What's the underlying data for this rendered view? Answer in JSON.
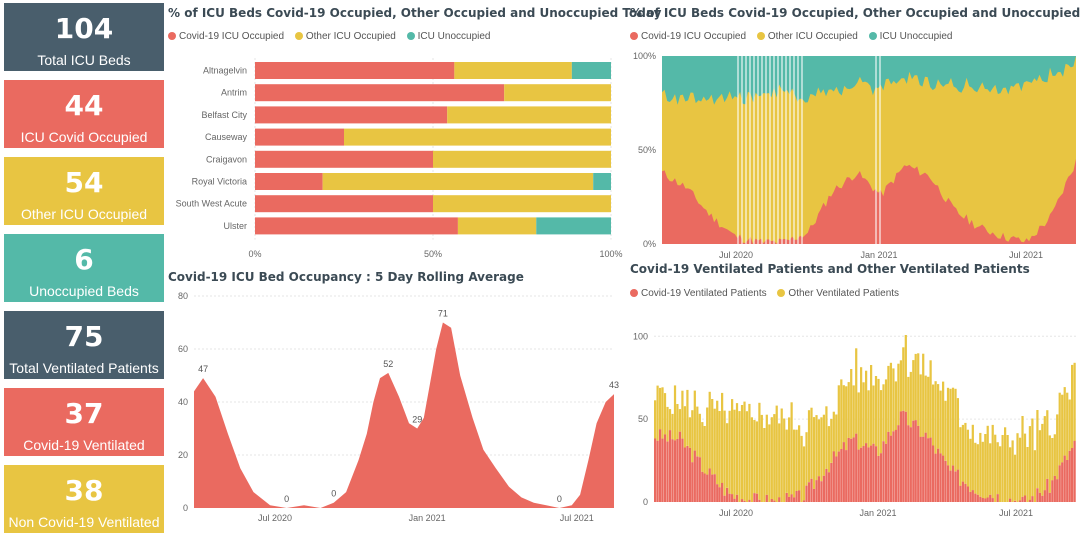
{
  "colors": {
    "covid": "#ea6a60",
    "other": "#e8c542",
    "unocc": "#54b9a8",
    "dark": "#495e6c"
  },
  "cards": [
    {
      "value": "104",
      "label": "Total ICU Beds",
      "color": "#495e6c"
    },
    {
      "value": "44",
      "label": "ICU Covid Occupied",
      "color": "#ea6a60"
    },
    {
      "value": "54",
      "label": "Other ICU Occupied",
      "color": "#e8c542"
    },
    {
      "value": "6",
      "label": "Unoccupied Beds",
      "color": "#54b9a8"
    },
    {
      "value": "75",
      "label": "Total Ventilated Patients",
      "color": "#495e6c"
    },
    {
      "value": "37",
      "label": "Covid-19 Ventilated",
      "color": "#ea6a60"
    },
    {
      "value": "38",
      "label": "Non Covid-19 Ventilated",
      "color": "#e8c542"
    }
  ],
  "chart_data": [
    {
      "type": "bar",
      "stacked": "100%",
      "orientation": "horizontal",
      "title": "% of ICU Beds Covid-19 Occupied, Other Occupied and Unoccupied Today",
      "legend": [
        "Covid-19 ICU Occupied",
        "Other ICU Occupied",
        "ICU Unoccupied"
      ],
      "legend_position": "top-left",
      "categories": [
        "Altnagelvin",
        "Antrim",
        "Belfast City",
        "Causeway",
        "Craigavon",
        "Royal Victoria",
        "South West Acute",
        "Ulster"
      ],
      "series": [
        {
          "name": "Covid-19 ICU Occupied",
          "values": [
            56,
            70,
            54,
            25,
            50,
            19,
            50,
            57
          ]
        },
        {
          "name": "Other ICU Occupied",
          "values": [
            33,
            30,
            46,
            75,
            50,
            76,
            50,
            22
          ]
        },
        {
          "name": "ICU Unoccupied",
          "values": [
            11,
            0,
            0,
            0,
            0,
            5,
            0,
            21
          ]
        }
      ],
      "x_ticks": [
        "0%",
        "50%",
        "100%"
      ],
      "xlim": [
        0,
        100
      ]
    },
    {
      "type": "area",
      "stacked": "100%",
      "title": "% of ICU Beds Covid-19 Occupied, Other Occupied and Unoccupied",
      "legend": [
        "Covid-19 ICU Occupied",
        "Other ICU Occupied",
        "ICU Unoccupied"
      ],
      "legend_position": "top-left",
      "x_ticks": [
        "Jul 2020",
        "Jan 2021",
        "Jul 2021"
      ],
      "y_ticks": [
        "0%",
        "50%",
        "100%"
      ],
      "x": [
        "2020-03",
        "2020-04",
        "2020-05",
        "2020-06",
        "2020-07",
        "2020-08",
        "2020-09",
        "2020-10",
        "2020-11",
        "2020-12",
        "2021-01",
        "2021-02",
        "2021-03",
        "2021-04",
        "2021-05",
        "2021-06",
        "2021-07",
        "2021-08"
      ],
      "series": [
        {
          "name": "Covid-19 ICU Occupied",
          "values": [
            38,
            30,
            15,
            4,
            1,
            1,
            6,
            28,
            38,
            26,
            42,
            36,
            18,
            9,
            4,
            1,
            15,
            44
          ]
        },
        {
          "name": "Other ICU Occupied",
          "values": [
            42,
            47,
            63,
            74,
            78,
            80,
            72,
            54,
            46,
            58,
            46,
            50,
            66,
            75,
            80,
            84,
            75,
            53
          ]
        },
        {
          "name": "ICU Unoccupied",
          "values": [
            20,
            23,
            22,
            22,
            21,
            19,
            22,
            18,
            16,
            16,
            12,
            14,
            16,
            16,
            16,
            15,
            10,
            3
          ]
        }
      ]
    },
    {
      "type": "area",
      "title": "Covid-19 ICU Bed Occupancy : 5 Day Rolling Average",
      "x_ticks": [
        "Jul 2020",
        "Jan 2021",
        "Jul 2021"
      ],
      "y_ticks": [
        "0",
        "20",
        "40",
        "60",
        "80"
      ],
      "ylim": [
        0,
        80
      ],
      "x": [
        "2020-03-25",
        "2020-04-05",
        "2020-04-20",
        "2020-05-05",
        "2020-05-20",
        "2020-06-05",
        "2020-06-25",
        "2020-07-15",
        "2020-08-05",
        "2020-08-25",
        "2020-09-10",
        "2020-09-25",
        "2020-10-10",
        "2020-10-20",
        "2020-10-28",
        "2020-11-05",
        "2020-11-15",
        "2020-11-28",
        "2020-12-10",
        "2020-12-20",
        "2020-12-28",
        "2021-01-05",
        "2021-01-12",
        "2021-01-20",
        "2021-01-30",
        "2021-02-10",
        "2021-02-25",
        "2021-03-10",
        "2021-03-25",
        "2021-04-10",
        "2021-04-25",
        "2021-05-10",
        "2021-05-25",
        "2021-06-10",
        "2021-06-25",
        "2021-07-05",
        "2021-07-15",
        "2021-07-25",
        "2021-08-05",
        "2021-08-15"
      ],
      "values": [
        44,
        49,
        42,
        28,
        15,
        6,
        1,
        0,
        1,
        0,
        2,
        6,
        18,
        28,
        40,
        49,
        51,
        42,
        32,
        30,
        34,
        48,
        60,
        70,
        68,
        50,
        34,
        22,
        15,
        8,
        4,
        2,
        1,
        0,
        1,
        5,
        18,
        32,
        40,
        43
      ],
      "data_labels": [
        {
          "x": "2020-04-05",
          "label": "47"
        },
        {
          "x": "2020-07-15",
          "label": "0"
        },
        {
          "x": "2020-09-10",
          "label": "0"
        },
        {
          "x": "2020-11-15",
          "label": "52"
        },
        {
          "x": "2020-12-20",
          "label": "29"
        },
        {
          "x": "2021-01-20",
          "label": "71"
        },
        {
          "x": "2021-06-10",
          "label": "0"
        },
        {
          "x": "2021-08-15",
          "label": "43"
        }
      ]
    },
    {
      "type": "bar",
      "stacked": true,
      "title": "Covid-19 Ventilated Patients and Other Ventilated Patients",
      "legend": [
        "Covid-19 Ventilated Patients",
        "Other Ventilated Patients"
      ],
      "legend_position": "top-left",
      "x_ticks": [
        "Jul 2020",
        "Jan 2021",
        "Jul 2021"
      ],
      "y_ticks": [
        "0",
        "50",
        "100"
      ],
      "ylim": [
        0,
        105
      ],
      "x": [
        "2020-03",
        "2020-04",
        "2020-05",
        "2020-06",
        "2020-07",
        "2020-08",
        "2020-09",
        "2020-10",
        "2020-11",
        "2020-12",
        "2021-01",
        "2021-02",
        "2021-03",
        "2021-04",
        "2021-05",
        "2021-06",
        "2021-07",
        "2021-08"
      ],
      "series": [
        {
          "name": "Covid-19 Ventilated Patients",
          "values": [
            40,
            38,
            20,
            5,
            1,
            0,
            3,
            22,
            38,
            30,
            52,
            40,
            18,
            8,
            3,
            0,
            10,
            35
          ]
        },
        {
          "name": "Other Ventilated Patients",
          "values": [
            25,
            22,
            35,
            48,
            52,
            50,
            42,
            30,
            40,
            45,
            38,
            40,
            42,
            38,
            35,
            40,
            35,
            40
          ]
        }
      ]
    }
  ]
}
